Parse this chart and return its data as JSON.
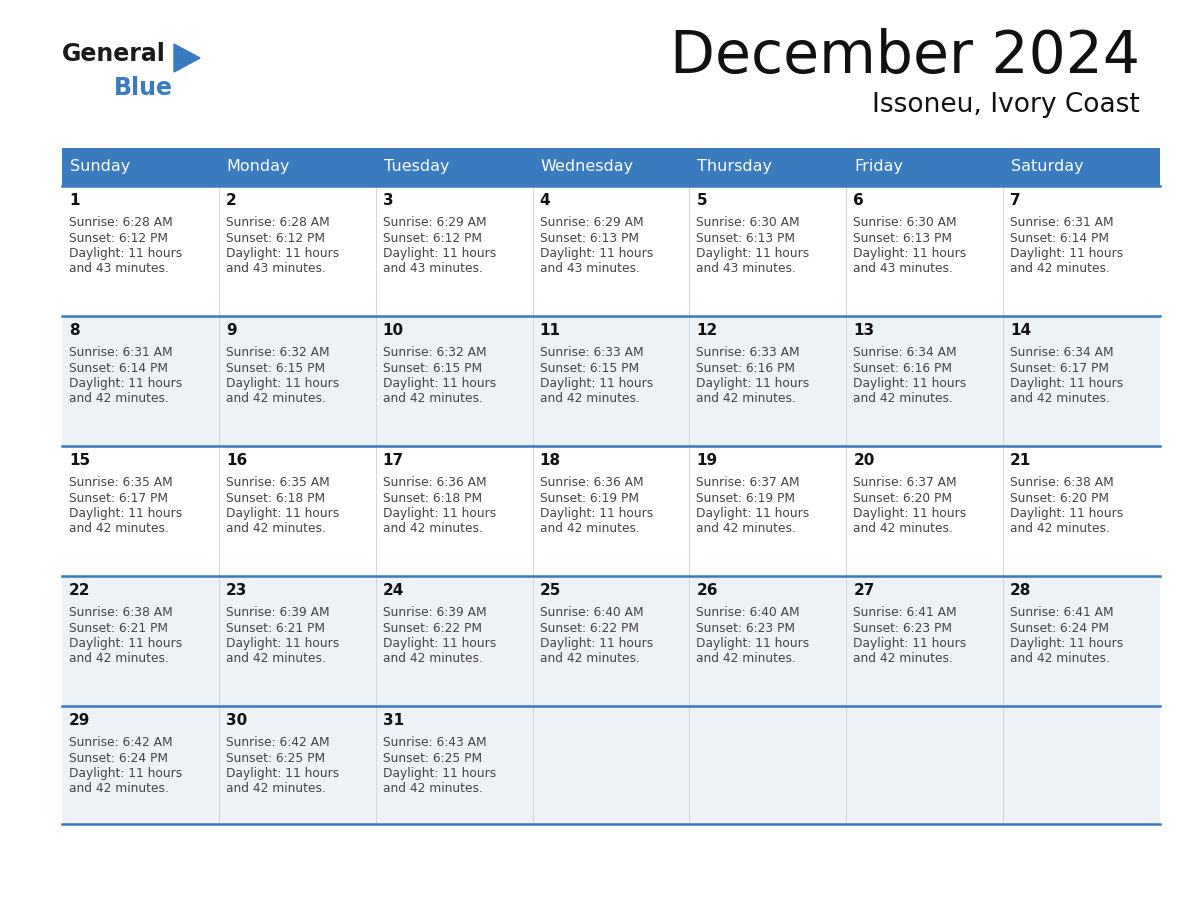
{
  "title": "December 2024",
  "subtitle": "Issoneu, Ivory Coast",
  "header_bg": "#3a7abf",
  "header_text": "#ffffff",
  "day_names": [
    "Sunday",
    "Monday",
    "Tuesday",
    "Wednesday",
    "Thursday",
    "Friday",
    "Saturday"
  ],
  "row_bg_even": "#edf2f7",
  "row_bg_odd": "#ffffff",
  "last_row_bg": "#edf2f7",
  "border_color": "#3a7abf",
  "text_color": "#444444",
  "day_num_color": "#111111",
  "calendar": [
    [
      {
        "day": 1,
        "sunrise": "6:28 AM",
        "sunset": "6:12 PM",
        "daylight": "11 hours and 43 minutes."
      },
      {
        "day": 2,
        "sunrise": "6:28 AM",
        "sunset": "6:12 PM",
        "daylight": "11 hours and 43 minutes."
      },
      {
        "day": 3,
        "sunrise": "6:29 AM",
        "sunset": "6:12 PM",
        "daylight": "11 hours and 43 minutes."
      },
      {
        "day": 4,
        "sunrise": "6:29 AM",
        "sunset": "6:13 PM",
        "daylight": "11 hours and 43 minutes."
      },
      {
        "day": 5,
        "sunrise": "6:30 AM",
        "sunset": "6:13 PM",
        "daylight": "11 hours and 43 minutes."
      },
      {
        "day": 6,
        "sunrise": "6:30 AM",
        "sunset": "6:13 PM",
        "daylight": "11 hours and 43 minutes."
      },
      {
        "day": 7,
        "sunrise": "6:31 AM",
        "sunset": "6:14 PM",
        "daylight": "11 hours and 42 minutes."
      }
    ],
    [
      {
        "day": 8,
        "sunrise": "6:31 AM",
        "sunset": "6:14 PM",
        "daylight": "11 hours and 42 minutes."
      },
      {
        "day": 9,
        "sunrise": "6:32 AM",
        "sunset": "6:15 PM",
        "daylight": "11 hours and 42 minutes."
      },
      {
        "day": 10,
        "sunrise": "6:32 AM",
        "sunset": "6:15 PM",
        "daylight": "11 hours and 42 minutes."
      },
      {
        "day": 11,
        "sunrise": "6:33 AM",
        "sunset": "6:15 PM",
        "daylight": "11 hours and 42 minutes."
      },
      {
        "day": 12,
        "sunrise": "6:33 AM",
        "sunset": "6:16 PM",
        "daylight": "11 hours and 42 minutes."
      },
      {
        "day": 13,
        "sunrise": "6:34 AM",
        "sunset": "6:16 PM",
        "daylight": "11 hours and 42 minutes."
      },
      {
        "day": 14,
        "sunrise": "6:34 AM",
        "sunset": "6:17 PM",
        "daylight": "11 hours and 42 minutes."
      }
    ],
    [
      {
        "day": 15,
        "sunrise": "6:35 AM",
        "sunset": "6:17 PM",
        "daylight": "11 hours and 42 minutes."
      },
      {
        "day": 16,
        "sunrise": "6:35 AM",
        "sunset": "6:18 PM",
        "daylight": "11 hours and 42 minutes."
      },
      {
        "day": 17,
        "sunrise": "6:36 AM",
        "sunset": "6:18 PM",
        "daylight": "11 hours and 42 minutes."
      },
      {
        "day": 18,
        "sunrise": "6:36 AM",
        "sunset": "6:19 PM",
        "daylight": "11 hours and 42 minutes."
      },
      {
        "day": 19,
        "sunrise": "6:37 AM",
        "sunset": "6:19 PM",
        "daylight": "11 hours and 42 minutes."
      },
      {
        "day": 20,
        "sunrise": "6:37 AM",
        "sunset": "6:20 PM",
        "daylight": "11 hours and 42 minutes."
      },
      {
        "day": 21,
        "sunrise": "6:38 AM",
        "sunset": "6:20 PM",
        "daylight": "11 hours and 42 minutes."
      }
    ],
    [
      {
        "day": 22,
        "sunrise": "6:38 AM",
        "sunset": "6:21 PM",
        "daylight": "11 hours and 42 minutes."
      },
      {
        "day": 23,
        "sunrise": "6:39 AM",
        "sunset": "6:21 PM",
        "daylight": "11 hours and 42 minutes."
      },
      {
        "day": 24,
        "sunrise": "6:39 AM",
        "sunset": "6:22 PM",
        "daylight": "11 hours and 42 minutes."
      },
      {
        "day": 25,
        "sunrise": "6:40 AM",
        "sunset": "6:22 PM",
        "daylight": "11 hours and 42 minutes."
      },
      {
        "day": 26,
        "sunrise": "6:40 AM",
        "sunset": "6:23 PM",
        "daylight": "11 hours and 42 minutes."
      },
      {
        "day": 27,
        "sunrise": "6:41 AM",
        "sunset": "6:23 PM",
        "daylight": "11 hours and 42 minutes."
      },
      {
        "day": 28,
        "sunrise": "6:41 AM",
        "sunset": "6:24 PM",
        "daylight": "11 hours and 42 minutes."
      }
    ],
    [
      {
        "day": 29,
        "sunrise": "6:42 AM",
        "sunset": "6:24 PM",
        "daylight": "11 hours and 42 minutes."
      },
      {
        "day": 30,
        "sunrise": "6:42 AM",
        "sunset": "6:25 PM",
        "daylight": "11 hours and 42 minutes."
      },
      {
        "day": 31,
        "sunrise": "6:43 AM",
        "sunset": "6:25 PM",
        "daylight": "11 hours and 42 minutes."
      },
      null,
      null,
      null,
      null
    ]
  ]
}
